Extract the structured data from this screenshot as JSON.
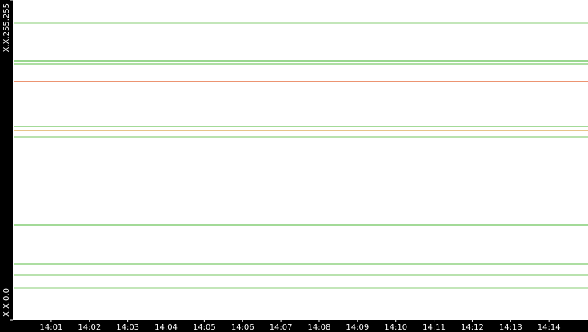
{
  "chart_data": {
    "type": "lines",
    "xlim": [
      0.02,
      15.02
    ],
    "xticks": [
      {
        "value": 1,
        "label": "14:01"
      },
      {
        "value": 2,
        "label": "14:02"
      },
      {
        "value": 3,
        "label": "14:03"
      },
      {
        "value": 4,
        "label": "14:04"
      },
      {
        "value": 5,
        "label": "14:05"
      },
      {
        "value": 6,
        "label": "14:06"
      },
      {
        "value": 7,
        "label": "14:07"
      },
      {
        "value": 8,
        "label": "14:08"
      },
      {
        "value": 9,
        "label": "14:09"
      },
      {
        "value": 10,
        "label": "14:10"
      },
      {
        "value": 11,
        "label": "14:11"
      },
      {
        "value": 12,
        "label": "14:12"
      },
      {
        "value": 13,
        "label": "14:13"
      },
      {
        "value": 14,
        "label": "14:14"
      }
    ],
    "ylim": [
      0,
      65535
    ],
    "yticks": [
      {
        "value": 0,
        "label": "X.X.0.0"
      },
      {
        "value": 65535,
        "label": "X.X.255.255"
      }
    ],
    "values": [
      60782,
      53083,
      52428,
      48824,
      39649,
      38829,
      37519,
      19497,
      11469,
      9175,
      6554
    ],
    "colors": [
      "#9fd88f",
      "#5cbf4a",
      "#7ccb6a",
      "#e0541c",
      "#6cc45a",
      "#d8a040",
      "#8fd07e",
      "#6cc45a",
      "#7ccb6a",
      "#8fd07e",
      "#9fd88f"
    ]
  }
}
